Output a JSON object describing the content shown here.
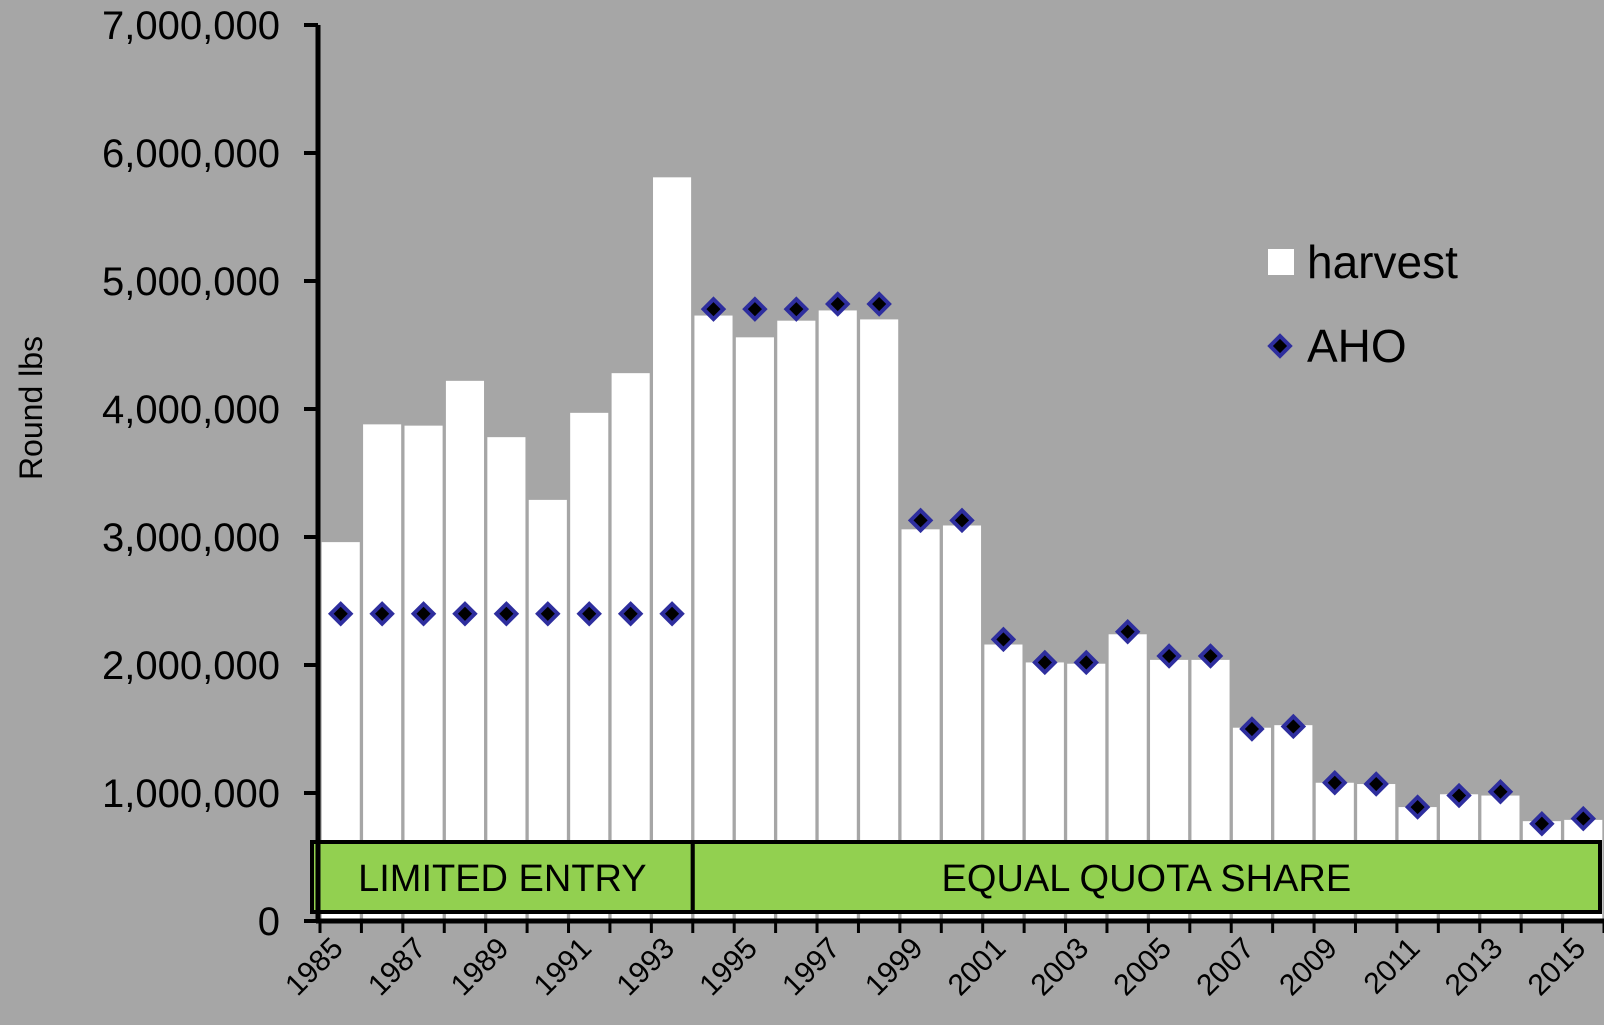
{
  "chart_data": {
    "type": "bar",
    "ylabel": "Round lbs",
    "ylim": [
      0,
      7000000
    ],
    "yticks": [
      {
        "value": 0,
        "label": "0"
      },
      {
        "value": 1000000,
        "label": "1,000,000"
      },
      {
        "value": 2000000,
        "label": "2,000,000"
      },
      {
        "value": 3000000,
        "label": "3,000,000"
      },
      {
        "value": 4000000,
        "label": "4,000,000"
      },
      {
        "value": 5000000,
        "label": "5,000,000"
      },
      {
        "value": 6000000,
        "label": "6,000,000"
      },
      {
        "value": 7000000,
        "label": "7,000,000"
      }
    ],
    "categories": [
      1985,
      1986,
      1987,
      1988,
      1989,
      1990,
      1991,
      1992,
      1993,
      1994,
      1995,
      1996,
      1997,
      1998,
      1999,
      2000,
      2001,
      2002,
      2003,
      2004,
      2005,
      2006,
      2007,
      2008,
      2009,
      2010,
      2011,
      2012,
      2013,
      2014,
      2015
    ],
    "xtick_labels": [
      "1985",
      "1987",
      "1989",
      "1991",
      "1993",
      "1995",
      "1997",
      "1999",
      "2001",
      "2003",
      "2005",
      "2007",
      "2009",
      "2011",
      "2013",
      "2015"
    ],
    "series": [
      {
        "name": "harvest",
        "kind": "bar",
        "color": "#ffffff",
        "values": [
          2960000,
          3880000,
          3870000,
          4220000,
          3780000,
          3290000,
          3970000,
          4280000,
          5810000,
          4730000,
          4560000,
          4690000,
          4770000,
          4700000,
          3060000,
          3090000,
          2160000,
          2020000,
          2010000,
          2240000,
          2040000,
          2040000,
          1510000,
          1530000,
          1080000,
          1070000,
          890000,
          990000,
          980000,
          780000,
          790000
        ]
      },
      {
        "name": "AHO",
        "kind": "marker",
        "color": "#1f1f8f",
        "values": [
          2400000,
          2400000,
          2400000,
          2400000,
          2400000,
          2400000,
          2400000,
          2400000,
          2400000,
          4780000,
          4780000,
          4780000,
          4820000,
          4820000,
          3130000,
          3130000,
          2200000,
          2020000,
          2020000,
          2260000,
          2070000,
          2070000,
          1500000,
          1520000,
          1080000,
          1070000,
          890000,
          980000,
          1010000,
          760000,
          800000
        ]
      }
    ],
    "periods": [
      {
        "label": "LIMITED ENTRY",
        "from": 1985,
        "to": 1993
      },
      {
        "label": "EQUAL QUOTA SHARE",
        "from": 1994,
        "to": 2015
      }
    ],
    "period_fill": "#92d050",
    "legend_position": "top-right",
    "grid": false
  }
}
